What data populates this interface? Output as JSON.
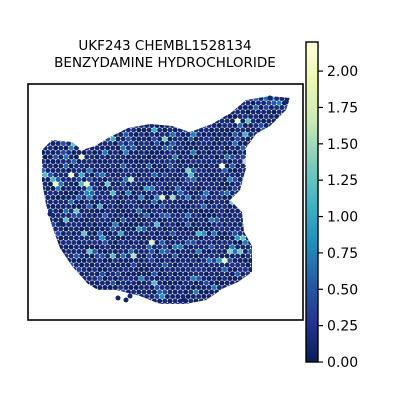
{
  "chart_data": {
    "type": "heatmap",
    "subtype": "spatial-hexbin",
    "title_lines": [
      "UKF243 CHEMBL1528134",
      "BENZYDAMINE HYDROCHLORIDE"
    ],
    "colormap": "YlGnBu_r",
    "colorbar": {
      "min": 0.0,
      "max": 2.2,
      "ticks": [
        0.0,
        0.25,
        0.5,
        0.75,
        1.0,
        1.25,
        1.5,
        1.75,
        2.0
      ],
      "tick_labels": [
        "0.00",
        "0.25",
        "0.50",
        "0.75",
        "1.00",
        "1.25",
        "1.50",
        "1.75",
        "2.00"
      ],
      "stops": [
        "#081d58",
        "#253494",
        "#225ea8",
        "#1d91c0",
        "#41b6c4",
        "#7fcdbb",
        "#c7e9b4",
        "#edf8b1",
        "#ffffd9"
      ]
    },
    "typical_value": 0.1,
    "axes_visible": false,
    "grid": false,
    "legend": "colorbar-right"
  }
}
